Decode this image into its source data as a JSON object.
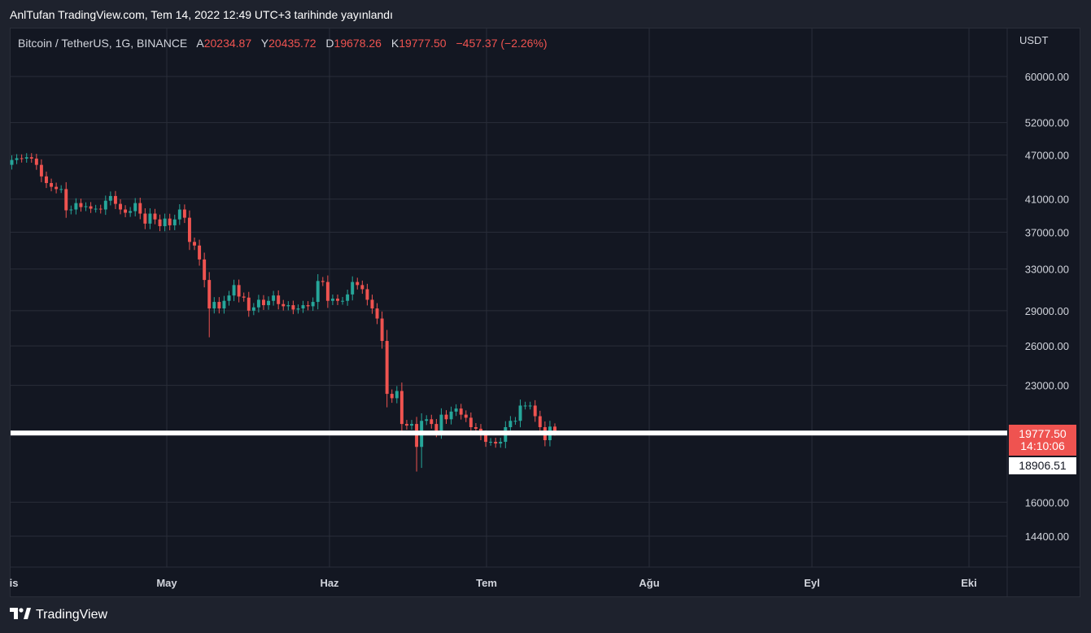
{
  "header": {
    "publish_text": "AnlTufan TradingView.com, Tem 14, 2022 12:49 UTC+3 tarihinde yayınlandı"
  },
  "legend": {
    "symbol": "Bitcoin / TetherUS, 1G, BINANCE",
    "open_label": "A",
    "open": "20234.87",
    "high_label": "Y",
    "high": "20435.72",
    "low_label": "D",
    "low": "19678.26",
    "close_label": "K",
    "close": "19777.50",
    "change": "−457.37 (−2.26%)"
  },
  "price_axis": {
    "currency": "USDT",
    "current_price": "19777.50",
    "countdown": "14:10:06",
    "level_price": "18906.51"
  },
  "footer": {
    "brand": "TradingView"
  },
  "colors": {
    "up": "#26a69a",
    "down": "#ef5350",
    "background": "#131722",
    "frame": "#1e222d",
    "grid": "#2a2e39",
    "level_line": "#ffffff"
  },
  "chart_data": {
    "type": "candlestick",
    "title": "Bitcoin / TetherUS, 1G, BINANCE",
    "y_scale": "log",
    "ylim": [
      12500,
      74000
    ],
    "y_ticks": [
      60000,
      52000,
      47000,
      41000,
      37000,
      33000,
      29000,
      26000,
      23000,
      16000,
      14400
    ],
    "x_labels": [
      "is",
      "May",
      "Haz",
      "Tem",
      "Ağu",
      "Eyl",
      "Eki"
    ],
    "horizontal_level": 18906.51,
    "last_price": 19777.5,
    "closes": [
      46300,
      46550,
      46500,
      46700,
      46500,
      45600,
      44000,
      43100,
      42600,
      42300,
      42300,
      39600,
      39700,
      40500,
      40000,
      40100,
      39800,
      39800,
      39700,
      40800,
      41400,
      40400,
      39700,
      39300,
      39500,
      40500,
      39200,
      38000,
      39200,
      38500,
      37700,
      38600,
      37800,
      38500,
      39700,
      38700,
      35900,
      35500,
      34000,
      31900,
      29200,
      29800,
      29200,
      29900,
      30400,
      31400,
      30300,
      30200,
      29000,
      29300,
      30000,
      29500,
      29900,
      30400,
      29600,
      29400,
      29500,
      29100,
      29200,
      29500,
      29400,
      29800,
      31800,
      31700,
      29900,
      30100,
      29900,
      29900,
      30500,
      31700,
      31400,
      31000,
      30000,
      29200,
      28300,
      26400,
      22400,
      22100,
      22600,
      20400,
      20300,
      20400,
      19000,
      20600,
      20700,
      20400,
      19900,
      21000,
      20700,
      21200,
      21400,
      21000,
      20800,
      20200,
      20100,
      19700,
      19300,
      19300,
      19200,
      19300,
      20200,
      20600,
      20600,
      21600,
      21600,
      21600,
      20900,
      20200,
      19400,
      20234.87,
      19777.5
    ]
  }
}
